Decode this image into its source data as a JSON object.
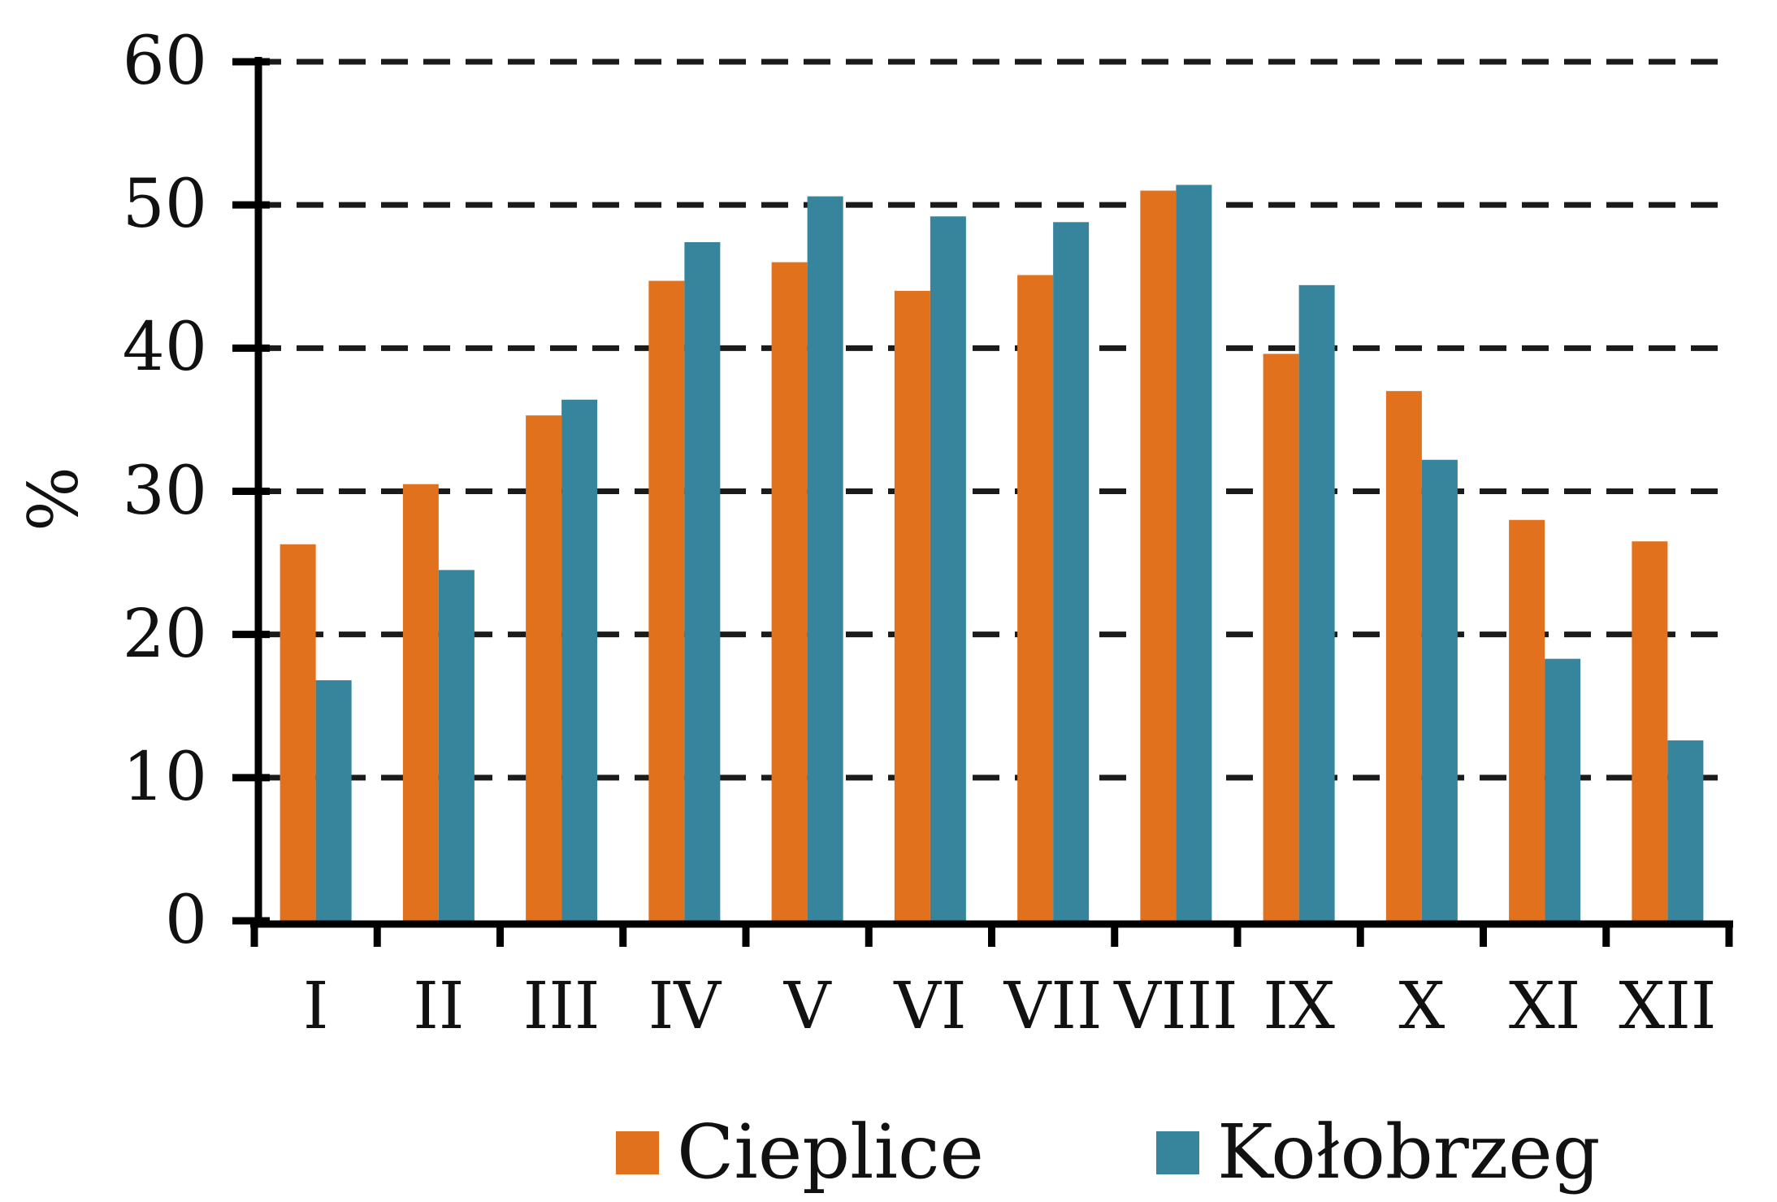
{
  "background_color": "#ffffff",
  "text_color": "#111111",
  "chart_data": {
    "type": "bar",
    "title": "",
    "xlabel": "",
    "ylabel": "%",
    "categories": [
      "I",
      "II",
      "III",
      "IV",
      "V",
      "VI",
      "VII",
      "VIII",
      "IX",
      "X",
      "XI",
      "XII"
    ],
    "series": [
      {
        "name": "Cieplice",
        "color": "#E2711D",
        "values": [
          26.3,
          30.5,
          35.3,
          44.7,
          46.0,
          44.0,
          45.1,
          51.0,
          39.6,
          37.0,
          28.0,
          26.5
        ]
      },
      {
        "name": "Kołobrzeg",
        "color": "#36859C",
        "values": [
          16.8,
          24.5,
          36.4,
          47.4,
          50.6,
          49.2,
          48.8,
          51.4,
          44.4,
          32.2,
          18.3,
          12.6
        ]
      }
    ],
    "ylim": [
      0,
      60
    ],
    "yticks": [
      0,
      10,
      20,
      30,
      40,
      50,
      60
    ],
    "grid": "horizontal dashed black lines at each y tick",
    "legend_position": "bottom",
    "gridline_color": "#1b1b1b",
    "axis_color": "#000000"
  }
}
